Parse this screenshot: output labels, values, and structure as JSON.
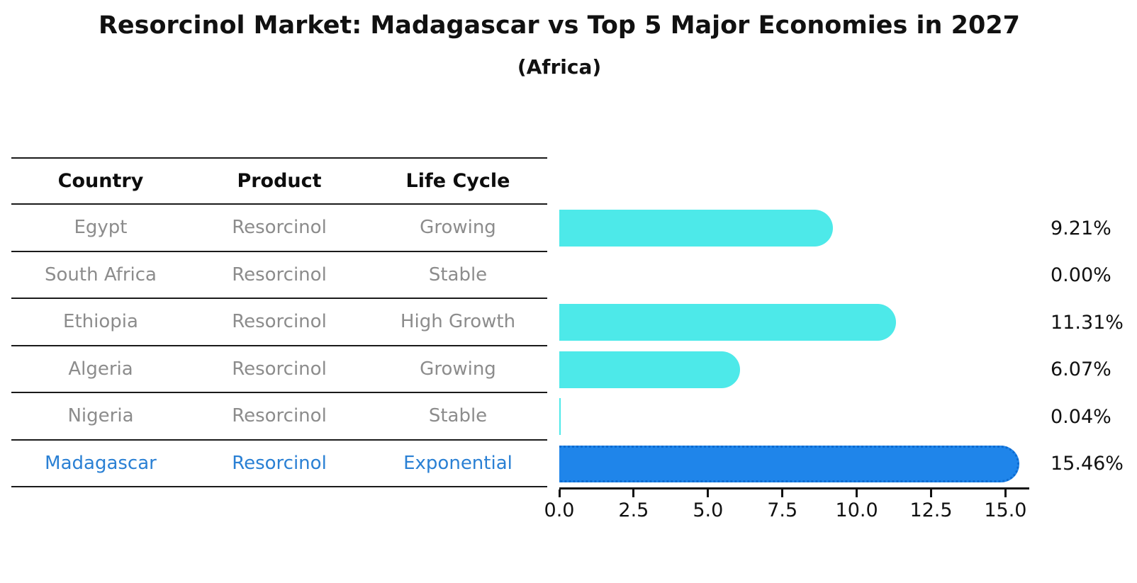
{
  "title": "Resorcinol Market: Madagascar vs Top 5 Major Economies in 2027",
  "subtitle": "(Africa)",
  "table": {
    "headers": {
      "country": "Country",
      "product": "Product",
      "life_cycle": "Life Cycle"
    },
    "rows": [
      {
        "country": "Egypt",
        "product": "Resorcinol",
        "life_cycle": "Growing",
        "highlight": false
      },
      {
        "country": "South Africa",
        "product": "Resorcinol",
        "life_cycle": "Stable",
        "highlight": false
      },
      {
        "country": "Ethiopia",
        "product": "Resorcinol",
        "life_cycle": "High Growth",
        "highlight": false
      },
      {
        "country": "Algeria",
        "product": "Resorcinol",
        "life_cycle": "Growing",
        "highlight": false
      },
      {
        "country": "Nigeria",
        "product": "Resorcinol",
        "life_cycle": "Stable",
        "highlight": false
      },
      {
        "country": "Madagascar",
        "product": "Resorcinol",
        "life_cycle": "Exponential",
        "highlight": true
      }
    ]
  },
  "chart_data": {
    "type": "bar",
    "orientation": "horizontal",
    "title": "Resorcinol Market: Madagascar vs Top 5 Major Economies in 2027",
    "subtitle": "(Africa)",
    "categories": [
      "Egypt",
      "South Africa",
      "Ethiopia",
      "Algeria",
      "Nigeria",
      "Madagascar"
    ],
    "values": [
      9.21,
      0.0,
      11.31,
      6.07,
      0.04,
      15.46
    ],
    "value_labels": [
      "9.21%",
      "0.00%",
      "11.31%",
      "6.07%",
      "0.04%",
      "15.46%"
    ],
    "xlabel": "",
    "ylabel": "",
    "xlim": [
      0,
      15.8
    ],
    "x_ticks": [
      "0.0",
      "2.5",
      "5.0",
      "7.5",
      "10.0",
      "12.5",
      "15.0"
    ],
    "x_tick_values": [
      0,
      2.5,
      5,
      7.5,
      10,
      12.5,
      15
    ],
    "grid": false,
    "legend": "none",
    "highlight_index": 5,
    "bar_color": "#4DE9E9",
    "highlight_bar_color": "#1F85EA",
    "highlight_text_color": "#2A80D4",
    "row_text_color": "#8C8C8C"
  }
}
